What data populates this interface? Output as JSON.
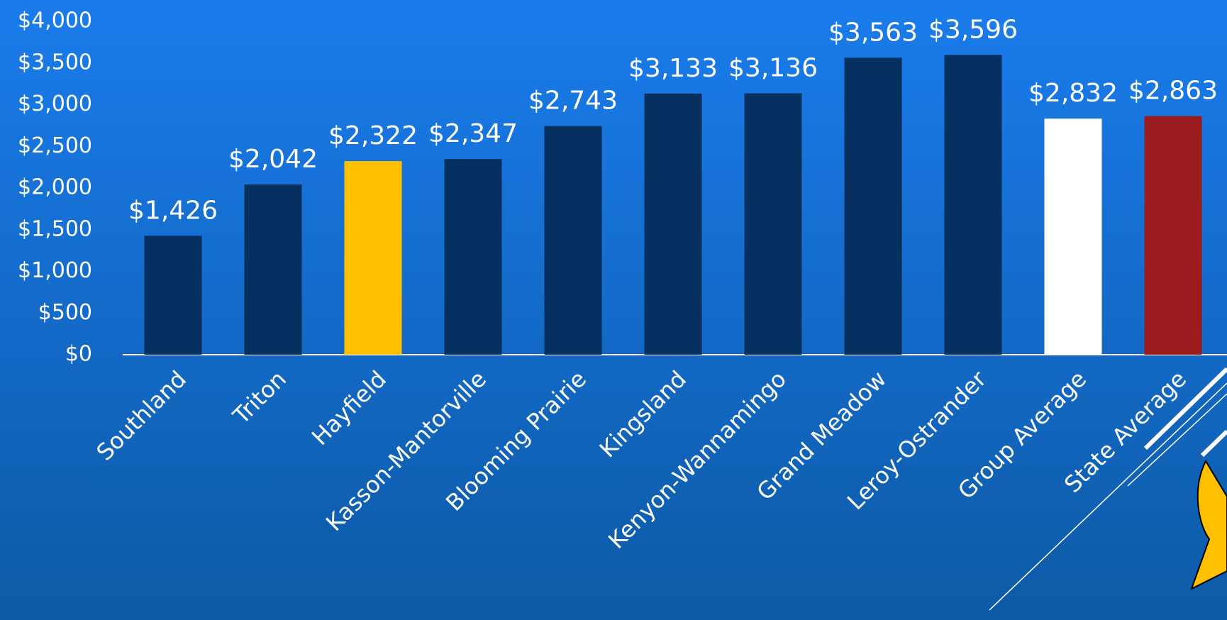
{
  "chart_data": {
    "type": "bar",
    "categories": [
      "Southland",
      "Triton",
      "Hayfield",
      "Kasson-Mantorville",
      "Blooming Prairie",
      "Kingsland",
      "Kenyon-Wannamingo",
      "Grand Meadow",
      "Leroy-Ostrander",
      "Group Average",
      "State Average"
    ],
    "values": [
      1426,
      2042,
      2322,
      2347,
      2743,
      3133,
      3136,
      3563,
      3596,
      2832,
      2863
    ],
    "value_labels": [
      "$1,426",
      "$2,042",
      "$2,322",
      "$2,347",
      "$2,743",
      "$3,133",
      "$3,136",
      "$3,563",
      "$3,596",
      "$2,832",
      "$2,863"
    ],
    "colors": [
      "#05305f",
      "#05305f",
      "#ffc000",
      "#05305f",
      "#05305f",
      "#05305f",
      "#05305f",
      "#05305f",
      "#05305f",
      "#ffffff",
      "#9a1c1f"
    ],
    "ylim": [
      0,
      4000
    ],
    "yticks": [
      {
        "value": 0,
        "label": "$0"
      },
      {
        "value": 500,
        "label": "$500"
      },
      {
        "value": 1000,
        "label": "$1,000"
      },
      {
        "value": 1500,
        "label": "$1,500"
      },
      {
        "value": 2000,
        "label": "$2,000"
      },
      {
        "value": 2500,
        "label": "$2,500"
      },
      {
        "value": 3000,
        "label": "$3,000"
      },
      {
        "value": 3500,
        "label": "$3,500"
      },
      {
        "value": 4000,
        "label": "$4,000"
      }
    ],
    "grid": false
  }
}
